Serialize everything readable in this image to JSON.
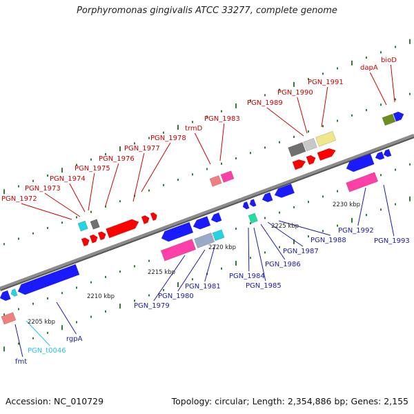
{
  "title": "Porphyromonas gingivalis ATCC 33277, complete genome",
  "footer": {
    "accession": "Accession: NC_010729",
    "stats": "Topology: circular; Length: 2,354,886 bp; Genes: 2,155"
  },
  "colors": {
    "backbone": "#8c8c8c",
    "tick": "#2e7d32",
    "fwd_label": "#cc0000",
    "rev_label": "#1a1aaa",
    "rna_label": "#22c4e6",
    "red": "#ff0000",
    "blue": "#1a1aff",
    "pink": "#ff3fa8",
    "gray": "#707070",
    "salmon": "#f08080",
    "cyan": "#22d4e0",
    "yellow": "#f0e68c"
  },
  "scale": {
    "labels": [
      "2205 kbp",
      "2210 kbp",
      "2215 kbp",
      "2220 kbp",
      "2225 kbp",
      "2230 kbp"
    ]
  },
  "genes_forward": [
    {
      "label": "PGN_1972"
    },
    {
      "label": "PGN_1973"
    },
    {
      "label": "PGN_1974"
    },
    {
      "label": "PGN_1975"
    },
    {
      "label": "PGN_1976"
    },
    {
      "label": "PGN_1977"
    },
    {
      "label": "PGN_1978"
    },
    {
      "label": "trmD"
    },
    {
      "label": "PGN_1983"
    },
    {
      "label": "PGN_1989"
    },
    {
      "label": "PGN_1990"
    },
    {
      "label": "PGN_1991"
    },
    {
      "label": "dapA"
    },
    {
      "label": "bioD"
    }
  ],
  "genes_reverse": [
    {
      "label": "fmt"
    },
    {
      "label": "PGN_t0046"
    },
    {
      "label": "rgpA"
    },
    {
      "label": "PGN_1979"
    },
    {
      "label": "PGN_1980"
    },
    {
      "label": "PGN_1981"
    },
    {
      "label": "PGN_1984"
    },
    {
      "label": "PGN_1985"
    },
    {
      "label": "PGN_1986"
    },
    {
      "label": "PGN_1987"
    },
    {
      "label": "PGN_1988"
    },
    {
      "label": "PGN_1992"
    },
    {
      "label": "PGN_1993"
    }
  ]
}
